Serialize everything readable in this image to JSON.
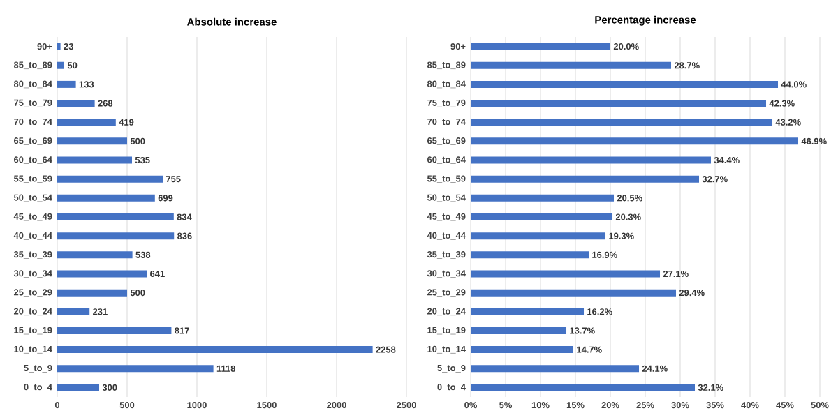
{
  "chart_data": [
    {
      "type": "bar",
      "orientation": "horizontal",
      "title": "Absolute increase",
      "categories": [
        "90+",
        "85_to_89",
        "80_to_84",
        "75_to_79",
        "70_to_74",
        "65_to_69",
        "60_to_64",
        "55_to_59",
        "50_to_54",
        "45_to_49",
        "40_to_44",
        "35_to_39",
        "30_to_34",
        "25_to_29",
        "20_to_24",
        "15_to_19",
        "10_to_14",
        "5_to_9",
        "0_to_4"
      ],
      "values": [
        23,
        50,
        133,
        268,
        419,
        500,
        535,
        755,
        699,
        834,
        836,
        538,
        641,
        500,
        231,
        817,
        2258,
        1118,
        300
      ],
      "color": "#4472c4",
      "xlim": [
        0,
        2500
      ],
      "xticks": [
        0,
        500,
        1000,
        1500,
        2000,
        2500
      ],
      "grid": "x",
      "data_labels": true
    },
    {
      "type": "bar",
      "orientation": "horizontal",
      "title": "Percentage increase",
      "categories": [
        "90+",
        "85_to_89",
        "80_to_84",
        "75_to_79",
        "70_to_74",
        "65_to_69",
        "60_to_64",
        "55_to_59",
        "50_to_54",
        "45_to_49",
        "40_to_44",
        "35_to_39",
        "30_to_34",
        "25_to_29",
        "20_to_24",
        "15_to_19",
        "10_to_14",
        "5_to_9",
        "0_to_4"
      ],
      "values": [
        20.0,
        28.7,
        44.0,
        42.3,
        43.2,
        46.9,
        34.4,
        32.7,
        20.5,
        20.3,
        19.3,
        16.9,
        27.1,
        29.4,
        16.2,
        13.7,
        14.7,
        24.1,
        32.1
      ],
      "value_labels": [
        "20.0%",
        "28.7%",
        "44.0%",
        "42.3%",
        "43.2%",
        "46.9%",
        "34.4%",
        "32.7%",
        "20.5%",
        "20.3%",
        "19.3%",
        "16.9%",
        "27.1%",
        "29.4%",
        "16.2%",
        "13.7%",
        "14.7%",
        "24.1%",
        "32.1%"
      ],
      "color": "#4472c4",
      "xlim": [
        0,
        50
      ],
      "xticks": [
        {
          "value": 0,
          "label": "0%"
        },
        {
          "value": 5,
          "label": "5%"
        },
        {
          "value": 10,
          "label": "10%"
        },
        {
          "value": 15,
          "label": "15%"
        },
        {
          "value": 20,
          "label": "20%"
        },
        {
          "value": 25,
          "label": "25%"
        },
        {
          "value": 30,
          "label": "30%"
        },
        {
          "value": 35,
          "label": "35%"
        },
        {
          "value": 40,
          "label": "40%"
        },
        {
          "value": 45,
          "label": "45%"
        },
        {
          "value": 50,
          "label": "50%"
        }
      ],
      "grid": "x"
    }
  ]
}
